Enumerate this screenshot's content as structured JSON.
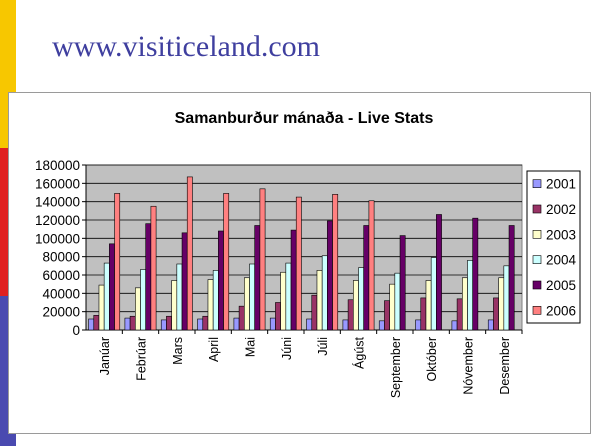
{
  "slide": {
    "heading": "www.visiticeland.com",
    "accent_colors": [
      "#f7c700",
      "#e02020",
      "#4a4ab0"
    ]
  },
  "chart_data": {
    "type": "bar",
    "title": "Samanburður mánaða - Live Stats",
    "xlabel": "",
    "ylabel": "",
    "ylim": [
      0,
      180000
    ],
    "yticks": [
      0,
      20000,
      40000,
      60000,
      80000,
      100000,
      120000,
      140000,
      160000,
      180000
    ],
    "grid": true,
    "legend_position": "right",
    "plot_background": "#c0c0c0",
    "categories": [
      "Janúar",
      "Febrúar",
      "Mars",
      "April",
      "Mai",
      "Júni",
      "Júli",
      "Ágúst",
      "September",
      "Október",
      "Nóvember",
      "Desember"
    ],
    "series": [
      {
        "name": "2001",
        "color": "#9999ff",
        "values": [
          12000,
          13000,
          11000,
          12000,
          13000,
          13000,
          12000,
          11000,
          10000,
          11000,
          10000,
          11000
        ]
      },
      {
        "name": "2002",
        "color": "#993366",
        "values": [
          16000,
          15000,
          15000,
          15000,
          26000,
          30000,
          38000,
          33000,
          32000,
          35000,
          34000,
          35000
        ]
      },
      {
        "name": "2003",
        "color": "#ffffcc",
        "values": [
          49000,
          46000,
          54000,
          55000,
          57000,
          63000,
          65000,
          54000,
          50000,
          54000,
          57000,
          57000
        ]
      },
      {
        "name": "2004",
        "color": "#ccffff",
        "values": [
          73000,
          66000,
          72000,
          65000,
          72000,
          73000,
          81000,
          68000,
          62000,
          79000,
          76000,
          70000
        ]
      },
      {
        "name": "2005",
        "color": "#660066",
        "values": [
          94000,
          116000,
          106000,
          108000,
          114000,
          109000,
          119000,
          114000,
          103000,
          126000,
          122000,
          114000
        ]
      },
      {
        "name": "2006",
        "color": "#ff8080",
        "values": [
          149000,
          135000,
          167000,
          149000,
          154000,
          145000,
          148000,
          141000,
          null,
          null,
          null,
          null
        ]
      }
    ]
  }
}
